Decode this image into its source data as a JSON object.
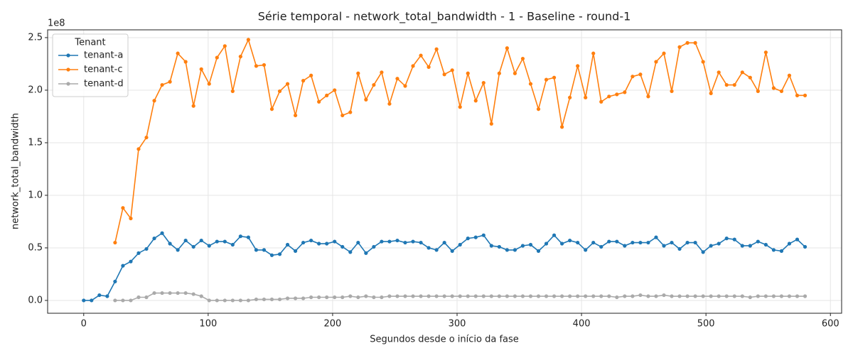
{
  "chart_data": {
    "type": "line",
    "title": "Série temporal - network_total_bandwidth - 1 - Baseline - round-1",
    "x_label": "Segundos desde o início da fase",
    "y_label": "network_total_bandwidth",
    "y_offset_label": "1e8",
    "legend_title": "Tenant",
    "legend_position": "upper left",
    "grid": true,
    "xlim": [
      -29,
      609
    ],
    "ylim": [
      -0.122,
      2.574
    ],
    "xticks": [
      0,
      100,
      200,
      300,
      400,
      500,
      600
    ],
    "yticks": [
      {
        "value": 0,
        "label": "0.0"
      },
      {
        "value": 0.5,
        "label": "0.5"
      },
      {
        "value": 1,
        "label": "1.0"
      },
      {
        "value": 1.5,
        "label": "1.5"
      },
      {
        "value": 2,
        "label": "2.0"
      },
      {
        "value": 2.5,
        "label": "2.5"
      }
    ],
    "x": [
      0,
      6.3,
      12.6,
      18.9,
      25.2,
      31.5,
      37.8,
      44.1,
      50.4,
      56.7,
      63,
      69.3,
      75.6,
      81.9,
      88.2,
      94.5,
      100.8,
      107.1,
      113.4,
      119.7,
      126,
      132.3,
      138.6,
      144.9,
      151.2,
      157.5,
      163.8,
      170.1,
      176.4,
      182.7,
      189,
      195.3,
      201.6,
      207.9,
      214.2,
      220.5,
      226.8,
      233.1,
      239.4,
      245.7,
      252,
      258.3,
      264.6,
      270.9,
      277.2,
      283.5,
      289.8,
      296.1,
      302.4,
      308.7,
      315,
      321.3,
      327.6,
      333.9,
      340.2,
      346.5,
      352.8,
      359.1,
      365.4,
      371.7,
      378,
      384.3,
      390.6,
      396.9,
      403.2,
      409.5,
      415.8,
      422.1,
      428.4,
      434.7,
      441,
      447.3,
      453.6,
      459.9,
      466.2,
      472.5,
      478.8,
      485.1,
      491.4,
      497.7,
      504,
      510.3,
      516.6,
      522.9,
      529.2,
      535.5,
      541.8,
      548.1,
      554.4,
      560.7,
      567,
      573.3,
      579.6
    ],
    "series": [
      {
        "name": "tenant-a",
        "color": "#1f77b4",
        "values": [
          0,
          0,
          0.05,
          0.04,
          0.18,
          0.33,
          0.37,
          0.45,
          0.49,
          0.59,
          0.64,
          0.54,
          0.48,
          0.57,
          0.51,
          0.57,
          0.52,
          0.56,
          0.56,
          0.53,
          0.61,
          0.6,
          0.48,
          0.48,
          0.43,
          0.44,
          0.53,
          0.47,
          0.55,
          0.57,
          0.54,
          0.54,
          0.56,
          0.51,
          0.46,
          0.55,
          0.45,
          0.51,
          0.56,
          0.56,
          0.57,
          0.55,
          0.56,
          0.55,
          0.5,
          0.48,
          0.55,
          0.47,
          0.53,
          0.59,
          0.6,
          0.62,
          0.52,
          0.51,
          0.48,
          0.48,
          0.52,
          0.53,
          0.47,
          0.54,
          0.62,
          0.54,
          0.57,
          0.55,
          0.48,
          0.55,
          0.51,
          0.56,
          0.56,
          0.52,
          0.55,
          0.55,
          0.55,
          0.6,
          0.52,
          0.55,
          0.49,
          0.55,
          0.55,
          0.46,
          0.52,
          0.54,
          0.59,
          0.58,
          0.52,
          0.52,
          0.56,
          0.53,
          0.48,
          0.47,
          0.54,
          0.58,
          0.51
        ]
      },
      {
        "name": "tenant-c",
        "color": "#ff7f0e",
        "values": [
          null,
          null,
          null,
          null,
          0.55,
          0.88,
          0.78,
          1.44,
          1.55,
          1.9,
          2.05,
          2.08,
          2.35,
          2.27,
          1.85,
          2.2,
          2.06,
          2.31,
          2.42,
          1.99,
          2.32,
          2.48,
          2.23,
          2.24,
          1.82,
          1.99,
          2.06,
          1.76,
          2.09,
          2.14,
          1.89,
          1.95,
          2.0,
          1.76,
          1.79,
          2.16,
          1.91,
          2.05,
          2.17,
          1.87,
          2.11,
          2.04,
          2.23,
          2.33,
          2.22,
          2.39,
          2.15,
          2.19,
          1.84,
          2.16,
          1.9,
          2.07,
          1.68,
          2.16,
          2.4,
          2.16,
          2.3,
          2.06,
          1.82,
          2.1,
          2.12,
          1.65,
          1.93,
          2.23,
          1.93,
          2.35,
          1.89,
          1.94,
          1.96,
          1.98,
          2.13,
          2.15,
          1.94,
          2.27,
          2.35,
          1.99,
          2.41,
          2.45,
          2.45,
          2.27,
          1.97,
          2.17,
          2.05,
          2.05,
          2.17,
          2.12,
          1.99,
          2.36,
          2.02,
          1.99,
          2.14,
          1.95,
          1.95
        ]
      },
      {
        "name": "tenant-d",
        "color": "#aaaaaa",
        "values": [
          null,
          null,
          null,
          null,
          0,
          0,
          0,
          0.03,
          0.03,
          0.07,
          0.07,
          0.07,
          0.07,
          0.07,
          0.06,
          0.04,
          0,
          0,
          0,
          0,
          0,
          0,
          0.01,
          0.01,
          0.01,
          0.01,
          0.02,
          0.02,
          0.02,
          0.03,
          0.03,
          0.03,
          0.03,
          0.03,
          0.04,
          0.03,
          0.04,
          0.03,
          0.03,
          0.04,
          0.04,
          0.04,
          0.04,
          0.04,
          0.04,
          0.04,
          0.04,
          0.04,
          0.04,
          0.04,
          0.04,
          0.04,
          0.04,
          0.04,
          0.04,
          0.04,
          0.04,
          0.04,
          0.04,
          0.04,
          0.04,
          0.04,
          0.04,
          0.04,
          0.04,
          0.04,
          0.04,
          0.04,
          0.03,
          0.04,
          0.04,
          0.05,
          0.04,
          0.04,
          0.05,
          0.04,
          0.04,
          0.04,
          0.04,
          0.04,
          0.04,
          0.04,
          0.04,
          0.04,
          0.04,
          0.03,
          0.04,
          0.04,
          0.04,
          0.04,
          0.04,
          0.04,
          0.04
        ]
      }
    ]
  }
}
